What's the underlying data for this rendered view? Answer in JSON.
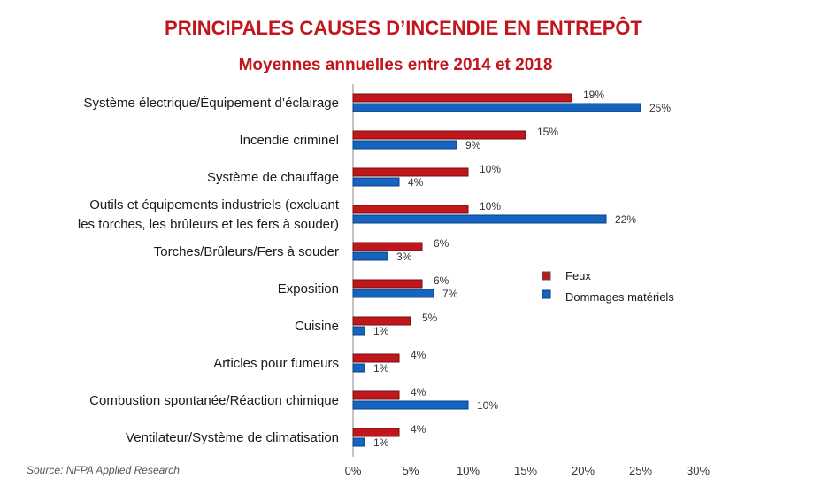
{
  "chart_data": {
    "type": "bar",
    "orientation": "horizontal",
    "title": "PRINCIPALES CAUSES D’INCENDIE EN ENTREPÔT",
    "subtitle": "Moyennes annuelles entre 2014 et 2018",
    "categories": [
      [
        "Système électrique/Équipement d’éclairage"
      ],
      [
        "Incendie criminel"
      ],
      [
        "Système de chauffage"
      ],
      [
        "Outils et équipements industriels (excluant",
        "les torches, les brûleurs et les fers à souder)"
      ],
      [
        "Torches/Brûleurs/Fers à souder"
      ],
      [
        "Exposition"
      ],
      [
        "Cuisine"
      ],
      [
        "Articles pour fumeurs"
      ],
      [
        "Combustion spontanée/Réaction chimique"
      ],
      [
        "Ventilateur/Système de climatisation"
      ]
    ],
    "series": [
      {
        "name": "Feux",
        "color": "#c0161c",
        "values": [
          19,
          15,
          10,
          10,
          6,
          6,
          5,
          4,
          4,
          4
        ]
      },
      {
        "name": "Dommages matériels",
        "color": "#1565c0",
        "values": [
          25,
          9,
          4,
          22,
          3,
          7,
          1,
          1,
          10,
          1
        ]
      }
    ],
    "value_suffix": "%",
    "xlim": [
      0,
      30
    ],
    "xticks": [
      "0%",
      "5%",
      "10%",
      "15%",
      "20%",
      "25%",
      "30%"
    ],
    "xtick_values": [
      0,
      5,
      10,
      15,
      20,
      25,
      30
    ],
    "legend_position": "right",
    "grid": false,
    "source": "Source: NFPA Applied Research"
  }
}
